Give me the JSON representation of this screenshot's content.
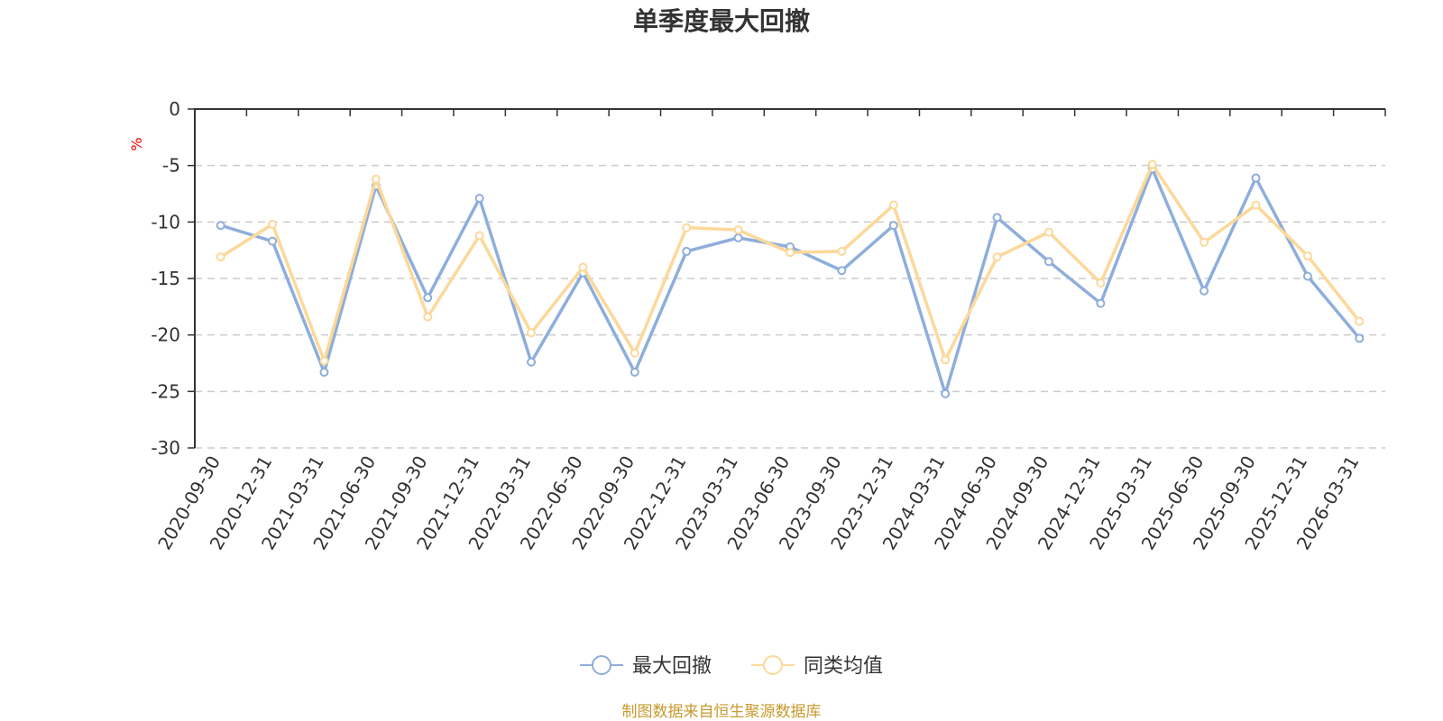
{
  "chart_data": {
    "type": "line",
    "title": "单季度最大回撤",
    "ylabel": "%",
    "ylim": [
      -30,
      0
    ],
    "yticks": [
      0,
      -5,
      -10,
      -15,
      -20,
      -25,
      -30
    ],
    "grid": true,
    "legend_position": "bottom",
    "categories": [
      "2020-09-30",
      "2020-12-31",
      "2021-03-31",
      "2021-06-30",
      "2021-09-30",
      "2021-12-31",
      "2022-03-31",
      "2022-06-30",
      "2022-09-30",
      "2022-12-31",
      "2023-03-31",
      "2023-06-30",
      "2023-09-30",
      "2023-12-31",
      "2024-03-31",
      "2024-06-30",
      "2024-09-30",
      "2024-12-31",
      "2025-03-31",
      "2025-06-30",
      "2025-09-30",
      "2025-12-31",
      "2026-03-31"
    ],
    "series": [
      {
        "name": "最大回撤",
        "color": "#8eaedb",
        "values": [
          -10.3,
          -11.7,
          -23.3,
          -6.8,
          -16.7,
          -7.9,
          -22.4,
          -14.5,
          -23.3,
          -12.6,
          -11.4,
          -12.2,
          -14.3,
          -10.3,
          -25.2,
          -9.6,
          -13.5,
          -17.2,
          -5.3,
          -16.1,
          -6.1,
          -14.8,
          -20.3
        ]
      },
      {
        "name": "同类均值",
        "color": "#fcd89a",
        "values": [
          -13.1,
          -10.2,
          -22.3,
          -6.2,
          -18.4,
          -11.2,
          -19.8,
          -14.0,
          -21.6,
          -10.5,
          -10.7,
          -12.7,
          -12.6,
          -8.5,
          -22.2,
          -13.1,
          -10.9,
          -15.4,
          -4.9,
          -11.8,
          -8.5,
          -13.0,
          -18.8
        ]
      }
    ]
  },
  "source_text": "制图数据来自恒生聚源数据库"
}
